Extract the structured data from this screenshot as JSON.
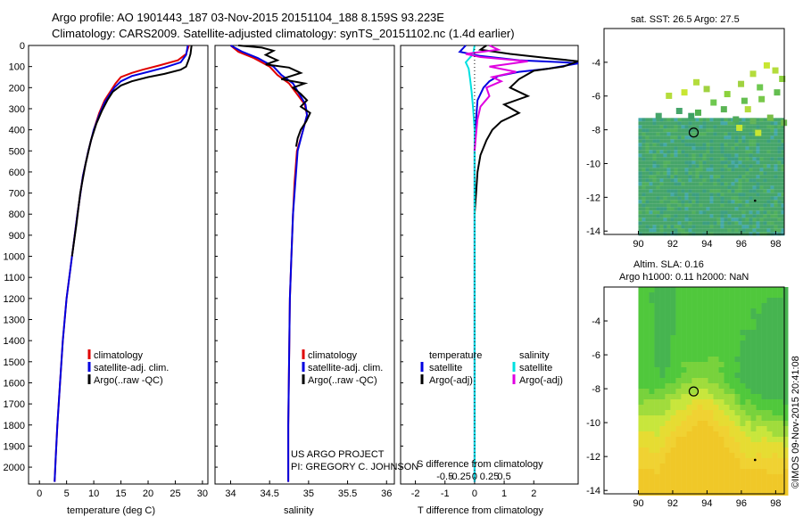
{
  "title_line1": "Argo profile: AO 1901443_187 03-Nov-2015 20151104_188 8.159S 93.223E",
  "title_line2": "Climatology: CARS2009. Satellite-adjusted climatology: synTS_20151102.nc (1.4d earlier)",
  "side_stamp": "©IMOS 09-Nov-2015 20:41:08",
  "colors": {
    "clim": "#e00000",
    "sat": "#0000e0",
    "argo": "#000000",
    "sat_s": "#00e0e0",
    "argo_s": "#e000e0"
  },
  "chart_data": [
    {
      "type": "line",
      "id": "temperature",
      "xlabel": "temperature (deg C)",
      "xlim": [
        -2,
        31
      ],
      "ylim": [
        0,
        2080
      ],
      "xticks": [
        "0",
        "5",
        "10",
        "15",
        "20",
        "25",
        "30"
      ],
      "yticks": [
        "0",
        "100",
        "200",
        "300",
        "400",
        "500",
        "600",
        "700",
        "800",
        "900",
        "1000",
        "1100",
        "1200",
        "1300",
        "1400",
        "1500",
        "1600",
        "1700",
        "1800",
        "1900",
        "2000"
      ],
      "legend": [
        "climatology",
        "satellite-adj. clim.",
        "Argo(..raw -QC)"
      ],
      "series": [
        {
          "name": "climatology",
          "color": "#e00000",
          "points": [
            [
              27.5,
              0
            ],
            [
              27,
              40
            ],
            [
              25.5,
              70
            ],
            [
              22,
              95
            ],
            [
              19,
              115
            ],
            [
              17,
              130
            ],
            [
              15,
              150
            ],
            [
              14,
              180
            ],
            [
              13,
              220
            ],
            [
              12,
              260
            ],
            [
              11,
              320
            ],
            [
              10,
              400
            ],
            [
              9,
              500
            ],
            [
              8,
              620
            ],
            [
              7,
              800
            ],
            [
              6,
              1000
            ],
            [
              5,
              1200
            ],
            [
              4.3,
              1400
            ],
            [
              3.8,
              1600
            ],
            [
              3.3,
              1800
            ],
            [
              3.0,
              1950
            ],
            [
              2.8,
              2070
            ]
          ]
        },
        {
          "name": "satellite-adj. clim.",
          "color": "#0000e0",
          "points": [
            [
              27.3,
              0
            ],
            [
              27,
              45
            ],
            [
              26,
              80
            ],
            [
              23,
              105
            ],
            [
              20,
              125
            ],
            [
              17,
              145
            ],
            [
              15,
              170
            ],
            [
              13.8,
              200
            ],
            [
              13,
              230
            ],
            [
              12,
              270
            ],
            [
              11,
              330
            ],
            [
              10,
              400
            ],
            [
              9,
              500
            ],
            [
              8,
              620
            ],
            [
              7,
              800
            ],
            [
              6,
              1000
            ],
            [
              5,
              1200
            ],
            [
              4.3,
              1400
            ],
            [
              3.8,
              1600
            ],
            [
              3.3,
              1800
            ],
            [
              3.0,
              1950
            ],
            [
              2.8,
              2070
            ]
          ]
        },
        {
          "name": "Argo",
          "color": "#000000",
          "points": [
            [
              28,
              0
            ],
            [
              27.8,
              40
            ],
            [
              27.5,
              65
            ],
            [
              27.0,
              100
            ],
            [
              26,
              115
            ],
            [
              23,
              135
            ],
            [
              20,
              150
            ],
            [
              17,
              170
            ],
            [
              15,
              190
            ],
            [
              13.5,
              220
            ],
            [
              12.5,
              260
            ],
            [
              11.5,
              310
            ],
            [
              10.5,
              370
            ],
            [
              9.5,
              450
            ],
            [
              8.5,
              560
            ],
            [
              7.5,
              700
            ],
            [
              6.8,
              850
            ],
            [
              6,
              1000
            ]
          ]
        }
      ]
    },
    {
      "type": "line",
      "id": "salinity",
      "xlabel": "salinity",
      "xlim": [
        33.8,
        36.1
      ],
      "ylim": [
        0,
        2080
      ],
      "xticks": [
        "34",
        "34.5",
        "35",
        "35.5",
        "36"
      ],
      "legend": [
        "climatology",
        "satellite-adj. clim.",
        "Argo(..raw -QC)"
      ],
      "annotation": [
        "US ARGO PROJECT",
        "PI: GREGORY C. JOHNSON"
      ],
      "series": [
        {
          "name": "climatology",
          "color": "#e00000",
          "points": [
            [
              34.0,
              0
            ],
            [
              34.1,
              30
            ],
            [
              34.3,
              60
            ],
            [
              34.5,
              100
            ],
            [
              34.6,
              140
            ],
            [
              34.75,
              180
            ],
            [
              34.85,
              230
            ],
            [
              34.95,
              280
            ],
            [
              34.98,
              330
            ],
            [
              34.93,
              400
            ],
            [
              34.85,
              500
            ],
            [
              34.82,
              650
            ],
            [
              34.8,
              800
            ],
            [
              34.78,
              1000
            ],
            [
              34.76,
              1200
            ],
            [
              34.75,
              1500
            ],
            [
              34.74,
              1800
            ],
            [
              34.74,
              2070
            ]
          ]
        },
        {
          "name": "satellite-adj. clim.",
          "color": "#0000e0",
          "points": [
            [
              34.0,
              0
            ],
            [
              34.15,
              30
            ],
            [
              34.35,
              60
            ],
            [
              34.55,
              100
            ],
            [
              34.65,
              140
            ],
            [
              34.8,
              180
            ],
            [
              34.88,
              230
            ],
            [
              34.96,
              280
            ],
            [
              34.98,
              330
            ],
            [
              34.93,
              400
            ],
            [
              34.86,
              500
            ],
            [
              34.83,
              650
            ],
            [
              34.8,
              800
            ],
            [
              34.78,
              1000
            ],
            [
              34.76,
              1200
            ],
            [
              34.75,
              1500
            ],
            [
              34.74,
              1800
            ],
            [
              34.74,
              2070
            ]
          ]
        },
        {
          "name": "Argo",
          "color": "#000000",
          "points": [
            [
              34.1,
              0
            ],
            [
              34.4,
              10
            ],
            [
              34.55,
              25
            ],
            [
              34.45,
              45
            ],
            [
              34.6,
              70
            ],
            [
              34.45,
              90
            ],
            [
              34.75,
              105
            ],
            [
              34.9,
              130
            ],
            [
              34.65,
              160
            ],
            [
              34.95,
              180
            ],
            [
              34.8,
              200
            ],
            [
              34.9,
              230
            ],
            [
              34.98,
              260
            ],
            [
              34.9,
              290
            ],
            [
              35.02,
              320
            ],
            [
              34.97,
              360
            ],
            [
              34.9,
              400
            ],
            [
              34.86,
              440
            ],
            [
              34.84,
              480
            ]
          ]
        }
      ]
    },
    {
      "type": "line",
      "id": "difference",
      "xlabel": "T difference from climatology",
      "xlabel2": "S difference from climatology",
      "xlim": [
        -2.5,
        3.5
      ],
      "ylim": [
        0,
        2080
      ],
      "xticks": [
        "-2",
        "-1",
        "0",
        "1",
        "2"
      ],
      "xticks_s": [
        "-0.5",
        "-0.25",
        "0",
        "0.25",
        "0.5"
      ],
      "legend_t": [
        "temperature",
        "satellite",
        "Argo(-adj)"
      ],
      "legend_s": [
        "salinity",
        "satellite",
        "Argo(-adj)"
      ],
      "series": [
        {
          "name": "T satellite",
          "color": "#0000e0",
          "points": [
            [
              -0.3,
              0
            ],
            [
              -0.5,
              30
            ],
            [
              0.2,
              50
            ],
            [
              1.5,
              70
            ],
            [
              3.0,
              80
            ],
            [
              3.5,
              85
            ],
            [
              2.5,
              110
            ],
            [
              1.5,
              125
            ],
            [
              0.8,
              145
            ],
            [
              0.5,
              170
            ],
            [
              0.3,
              200
            ],
            [
              0.1,
              260
            ],
            [
              0.05,
              350
            ],
            [
              0,
              500
            ],
            [
              0,
              2070
            ]
          ]
        },
        {
          "name": "T Argo",
          "color": "#000000",
          "points": [
            [
              0.4,
              0
            ],
            [
              0.2,
              20
            ],
            [
              1.2,
              40
            ],
            [
              2.5,
              60
            ],
            [
              3.5,
              75
            ],
            [
              3.0,
              100
            ],
            [
              2.0,
              120
            ],
            [
              1.5,
              160
            ],
            [
              1.2,
              200
            ],
            [
              1.8,
              240
            ],
            [
              1.0,
              280
            ],
            [
              1.5,
              320
            ],
            [
              0.9,
              360
            ],
            [
              0.6,
              400
            ],
            [
              0.4,
              450
            ],
            [
              0.2,
              520
            ],
            [
              0.1,
              600
            ],
            [
              0.05,
              700
            ],
            [
              0,
              800
            ]
          ]
        },
        {
          "name": "S satellite",
          "color": "#00e0e0",
          "points": [
            [
              0,
              0
            ],
            [
              -0.05,
              40
            ],
            [
              -0.3,
              80
            ],
            [
              -0.2,
              110
            ],
            [
              -0.15,
              160
            ],
            [
              -0.1,
              220
            ],
            [
              -0.05,
              300
            ],
            [
              0,
              400
            ],
            [
              0,
              2070
            ]
          ]
        },
        {
          "name": "S Argo",
          "color": "#e000e0",
          "points": [
            [
              0.5,
              0
            ],
            [
              0.8,
              20
            ],
            [
              -0.3,
              40
            ],
            [
              0.2,
              55
            ],
            [
              1.8,
              75
            ],
            [
              0.5,
              100
            ],
            [
              1.4,
              125
            ],
            [
              0.6,
              150
            ],
            [
              0.9,
              170
            ],
            [
              0.4,
              200
            ],
            [
              0.5,
              240
            ],
            [
              0.2,
              290
            ],
            [
              0.1,
              350
            ],
            [
              0.05,
              420
            ],
            [
              0,
              500
            ]
          ]
        }
      ]
    },
    {
      "type": "heatmap",
      "id": "sst_map",
      "title": "sat. SST: 26.5 Argo: 27.5",
      "xticks": [
        "90",
        "92",
        "94",
        "96",
        "98"
      ],
      "yticks": [
        "-4",
        "-6",
        "-8",
        "-10",
        "-12",
        "-14"
      ],
      "xlim": [
        88,
        98.5
      ],
      "ylim": [
        -14.2,
        -2
      ]
    },
    {
      "type": "heatmap",
      "id": "sla_map",
      "title": "Altim. SLA: 0.16",
      "title2": "Argo h1000: 0.11 h2000: NaN",
      "xticks": [
        "90",
        "92",
        "94",
        "96",
        "98"
      ],
      "yticks": [
        "-4",
        "-6",
        "-8",
        "-10",
        "-12",
        "-14"
      ],
      "xlim": [
        88,
        98.5
      ],
      "ylim": [
        -14.2,
        -2
      ]
    }
  ]
}
